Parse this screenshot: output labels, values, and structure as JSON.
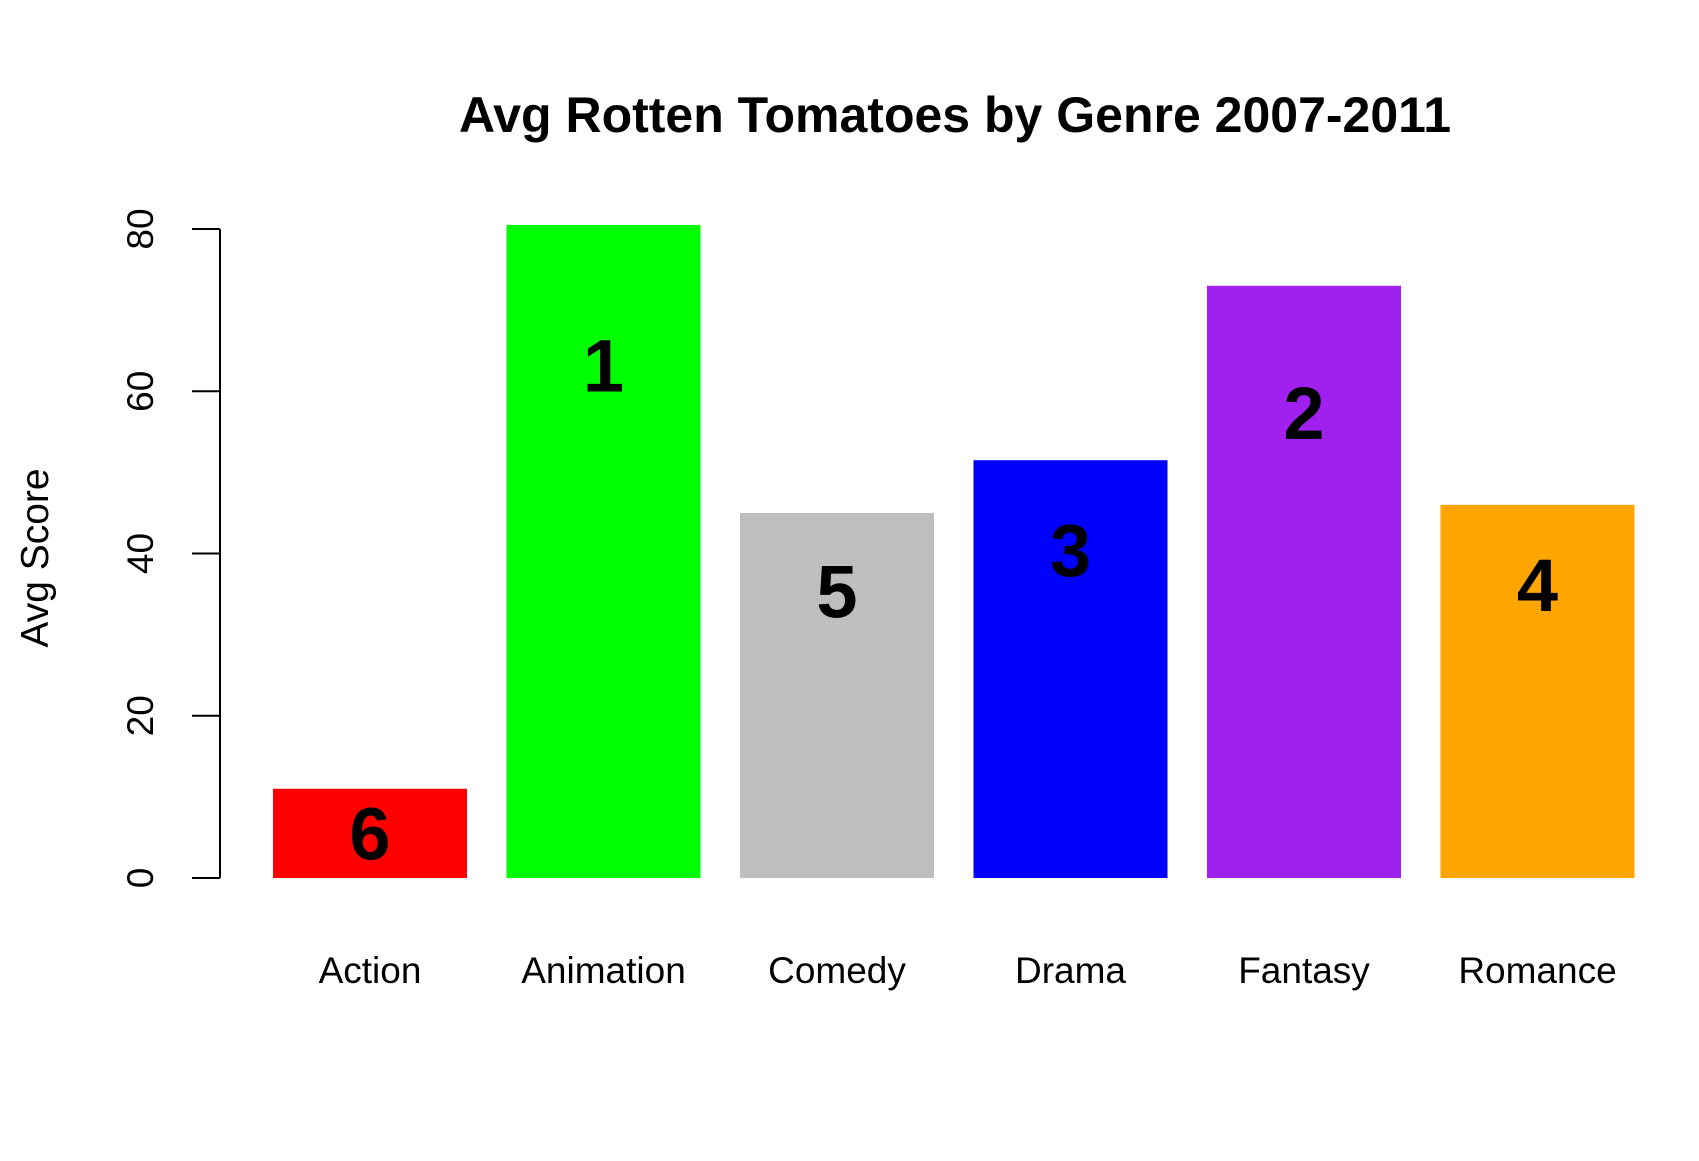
{
  "chart_data": {
    "type": "bar",
    "title": "Avg Rotten Tomatoes by Genre 2007-2011",
    "xlabel": "",
    "ylabel": "Avg Score",
    "ylim": [
      0,
      80
    ],
    "yticks": [
      0,
      20,
      40,
      60,
      80
    ],
    "grid": false,
    "categories": [
      "Action",
      "Animation",
      "Comedy",
      "Drama",
      "Fantasy",
      "Romance"
    ],
    "values": [
      11,
      80.5,
      45,
      51.5,
      73,
      46
    ],
    "colors": [
      "#ff0000",
      "#00ff00",
      "#bebebe",
      "#0000ff",
      "#a020f0",
      "#ffa500"
    ],
    "data_labels": [
      "6",
      "1",
      "5",
      "3",
      "2",
      "4"
    ]
  }
}
